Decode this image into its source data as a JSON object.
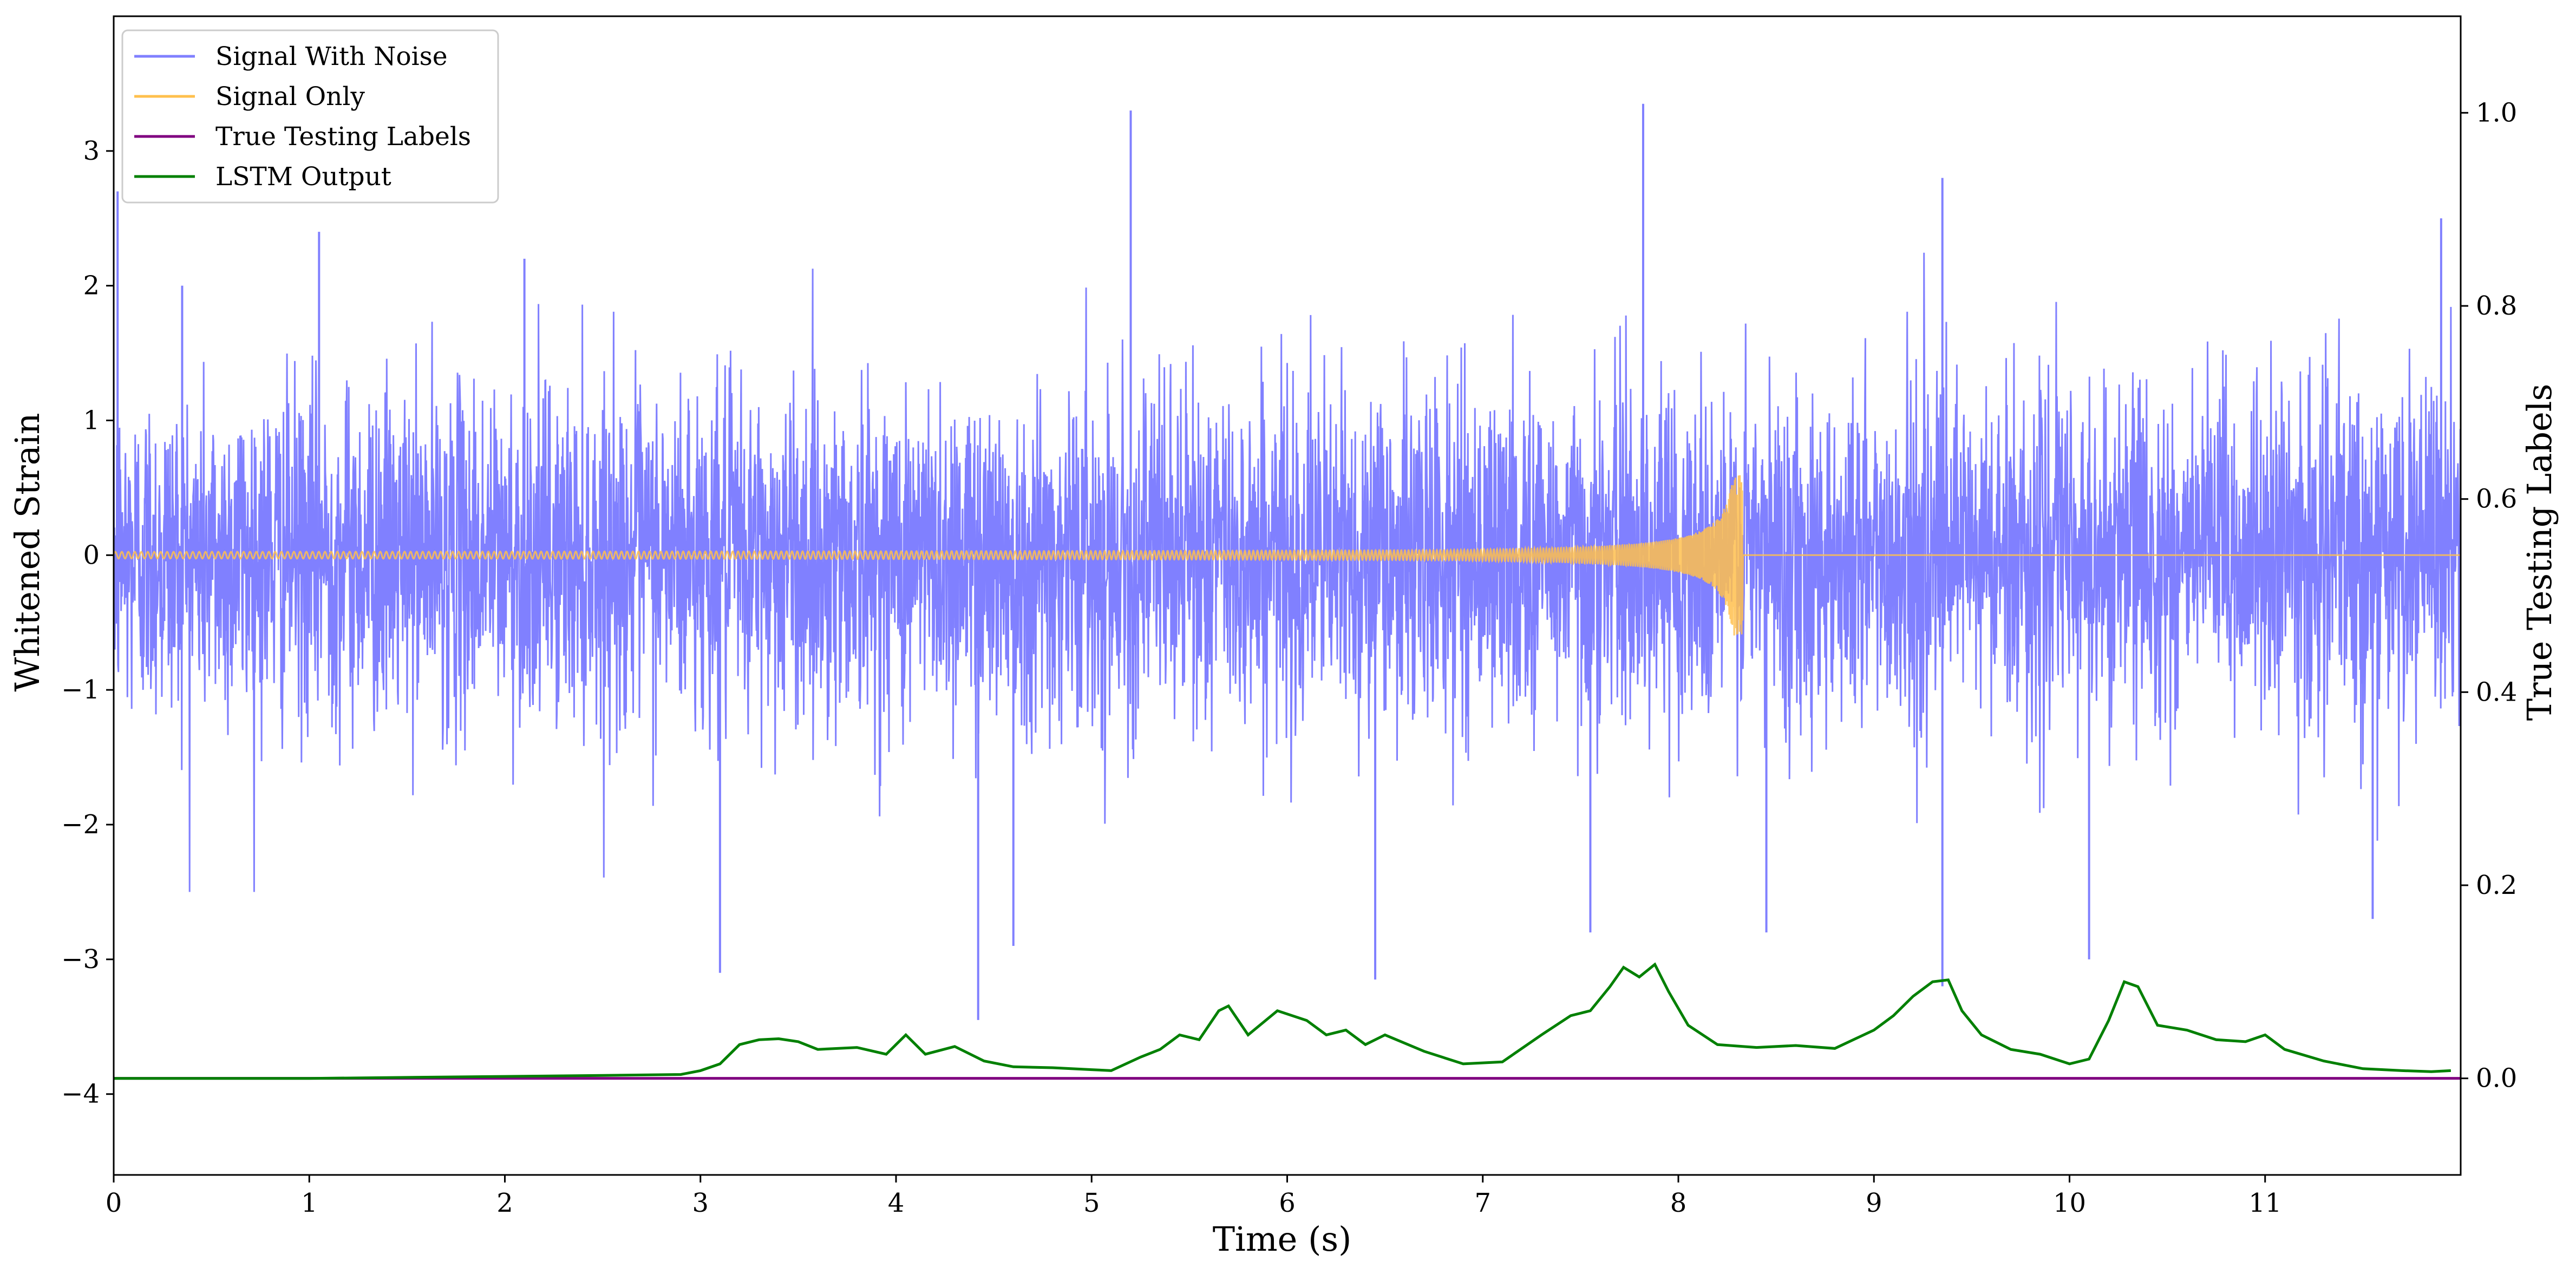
{
  "chart_data": {
    "type": "line",
    "xlabel": "Time (s)",
    "ylabel": "Whitened Strain",
    "y2label": "True Testing Labels",
    "xlim": [
      0,
      12
    ],
    "ylim": [
      -4.6,
      4.0
    ],
    "y2lim": [
      -0.1,
      1.1
    ],
    "xticks": [
      0,
      1,
      2,
      3,
      4,
      5,
      6,
      7,
      8,
      9,
      10,
      11
    ],
    "yticks": [
      -4,
      -3,
      -2,
      -1,
      0,
      1,
      2,
      3
    ],
    "y2ticks": [
      0.0,
      0.2,
      0.4,
      0.6,
      0.8,
      1.0
    ],
    "ytick_labels": [
      "−4",
      "−3",
      "−2",
      "−1",
      "0",
      "1",
      "2",
      "3"
    ],
    "y2tick_labels": [
      "0.0",
      "0.2",
      "0.4",
      "0.6",
      "0.8",
      "1.0"
    ],
    "xtick_labels": [
      "0",
      "1",
      "2",
      "3",
      "4",
      "5",
      "6",
      "7",
      "8",
      "9",
      "10",
      "11"
    ],
    "grid": false,
    "legend_position": "top-left",
    "series": [
      {
        "name": "Signal With Noise",
        "axis": "left",
        "color": "#8080ff",
        "style": "noise band, roughly -1.4 to 1.4 with spikes",
        "peaks": [
          [
            0.02,
            2.7
          ],
          [
            0.35,
            2.0
          ],
          [
            1.05,
            2.4
          ],
          [
            2.1,
            2.2
          ],
          [
            3.1,
            -3.1
          ],
          [
            4.42,
            -3.45
          ],
          [
            4.6,
            -2.9
          ],
          [
            5.2,
            3.3
          ],
          [
            6.45,
            -3.15
          ],
          [
            7.55,
            -2.8
          ],
          [
            7.82,
            3.35
          ],
          [
            8.45,
            -2.8
          ],
          [
            9.35,
            -3.2
          ],
          [
            9.35,
            2.8
          ],
          [
            10.1,
            -3.0
          ],
          [
            11.55,
            -2.7
          ],
          [
            11.9,
            2.5
          ]
        ]
      },
      {
        "name": "Signal Only",
        "axis": "left",
        "color": "#ffc04d",
        "style": "chirp: near zero until ~6 s, amplitude growing to ~0.6 at merger 8.33 s, zero after",
        "merger_time": 8.33,
        "peak_amplitude": 0.6
      },
      {
        "name": "True Testing Labels",
        "axis": "right",
        "color": "#800080",
        "x": [
          0,
          12
        ],
        "values": [
          0.0,
          0.0
        ]
      },
      {
        "name": "LSTM Output",
        "axis": "right",
        "color": "#008000",
        "x": [
          0,
          0.5,
          1.0,
          1.5,
          2.0,
          2.5,
          2.9,
          3.0,
          3.1,
          3.2,
          3.3,
          3.4,
          3.5,
          3.6,
          3.8,
          3.95,
          4.05,
          4.15,
          4.3,
          4.45,
          4.6,
          4.8,
          5.0,
          5.1,
          5.25,
          5.35,
          5.45,
          5.55,
          5.65,
          5.7,
          5.8,
          5.95,
          6.1,
          6.2,
          6.3,
          6.4,
          6.5,
          6.7,
          6.9,
          7.1,
          7.3,
          7.45,
          7.55,
          7.65,
          7.72,
          7.8,
          7.88,
          7.95,
          8.05,
          8.2,
          8.4,
          8.6,
          8.8,
          9.0,
          9.1,
          9.2,
          9.3,
          9.38,
          9.45,
          9.55,
          9.7,
          9.85,
          10.0,
          10.1,
          10.2,
          10.28,
          10.35,
          10.45,
          10.6,
          10.75,
          10.9,
          11.0,
          11.1,
          11.3,
          11.5,
          11.7,
          11.85,
          11.95
        ],
        "values": [
          0.0,
          0.0,
          0.0,
          0.001,
          0.002,
          0.003,
          0.004,
          0.008,
          0.015,
          0.035,
          0.04,
          0.041,
          0.038,
          0.03,
          0.032,
          0.025,
          0.045,
          0.025,
          0.033,
          0.018,
          0.012,
          0.011,
          0.009,
          0.008,
          0.022,
          0.03,
          0.045,
          0.04,
          0.07,
          0.075,
          0.045,
          0.07,
          0.06,
          0.045,
          0.05,
          0.035,
          0.045,
          0.028,
          0.015,
          0.017,
          0.045,
          0.065,
          0.07,
          0.095,
          0.115,
          0.105,
          0.118,
          0.09,
          0.055,
          0.035,
          0.032,
          0.034,
          0.031,
          0.05,
          0.065,
          0.085,
          0.1,
          0.102,
          0.07,
          0.045,
          0.03,
          0.025,
          0.015,
          0.02,
          0.06,
          0.1,
          0.095,
          0.055,
          0.05,
          0.04,
          0.038,
          0.045,
          0.03,
          0.018,
          0.01,
          0.008,
          0.007,
          0.008
        ]
      }
    ]
  }
}
